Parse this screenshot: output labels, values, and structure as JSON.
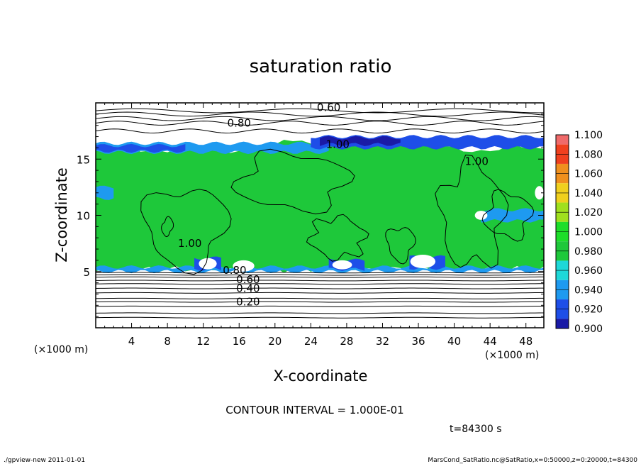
{
  "chart_data": {
    "type": "heatmap",
    "title": "saturation ratio",
    "xlabel": "X-coordinate",
    "ylabel": "Z-coordinate",
    "x_unit_left": "(×1000 m)",
    "x_unit_right": "(×1000 m)",
    "xlim": [
      0,
      50
    ],
    "ylim": [
      0,
      20
    ],
    "x_ticks": [
      "4",
      "8",
      "12",
      "16",
      "20",
      "24",
      "28",
      "32",
      "36",
      "40",
      "44",
      "48"
    ],
    "x_tick_values": [
      4,
      8,
      12,
      16,
      20,
      24,
      28,
      32,
      36,
      40,
      44,
      48
    ],
    "y_ticks": [
      "5",
      "10",
      "15"
    ],
    "y_tick_values": [
      5,
      10,
      15
    ],
    "colorbar": {
      "levels": [
        "0.900",
        "0.920",
        "0.940",
        "0.960",
        "0.980",
        "1.000",
        "1.020",
        "1.040",
        "1.060",
        "1.080",
        "1.100"
      ],
      "level_values": [
        0.9,
        0.92,
        0.94,
        0.96,
        0.98,
        1.0,
        1.02,
        1.04,
        1.06,
        1.08,
        1.1
      ],
      "colors": [
        "#6a2aa6",
        "#1a1aa6",
        "#1e4ee8",
        "#1e9af0",
        "#1ed8d8",
        "#1ec83a",
        "#1ede2a",
        "#a0e01e",
        "#f0d01e",
        "#f0901e",
        "#f0401e",
        "#f06a6a",
        "#f0a0a0"
      ]
    },
    "contour_labels": [
      {
        "text": "0.60",
        "x": 26,
        "y": 19.6
      },
      {
        "text": "0.80",
        "x": 16,
        "y": 18.2
      },
      {
        "text": "1.00",
        "x": 27,
        "y": 16.3
      },
      {
        "text": "1.00",
        "x": 42.5,
        "y": 14.8
      },
      {
        "text": "1.00",
        "x": 10.5,
        "y": 7.5
      },
      {
        "text": "0.80",
        "x": 15.5,
        "y": 5.1
      },
      {
        "text": "0.60",
        "x": 17,
        "y": 4.3
      },
      {
        "text": "0.40",
        "x": 17,
        "y": 3.5
      },
      {
        "text": "0.20",
        "x": 17,
        "y": 2.3
      }
    ],
    "contour_interval": "CONTOUR INTERVAL = 1.000E-01",
    "time": "t=84300 s"
  },
  "footer": {
    "left": "./gpview-new   2011-01-01",
    "right": "MarsCond_SatRatio.nc@SatRatio,x=0:50000,z=0:20000,t=84300"
  }
}
